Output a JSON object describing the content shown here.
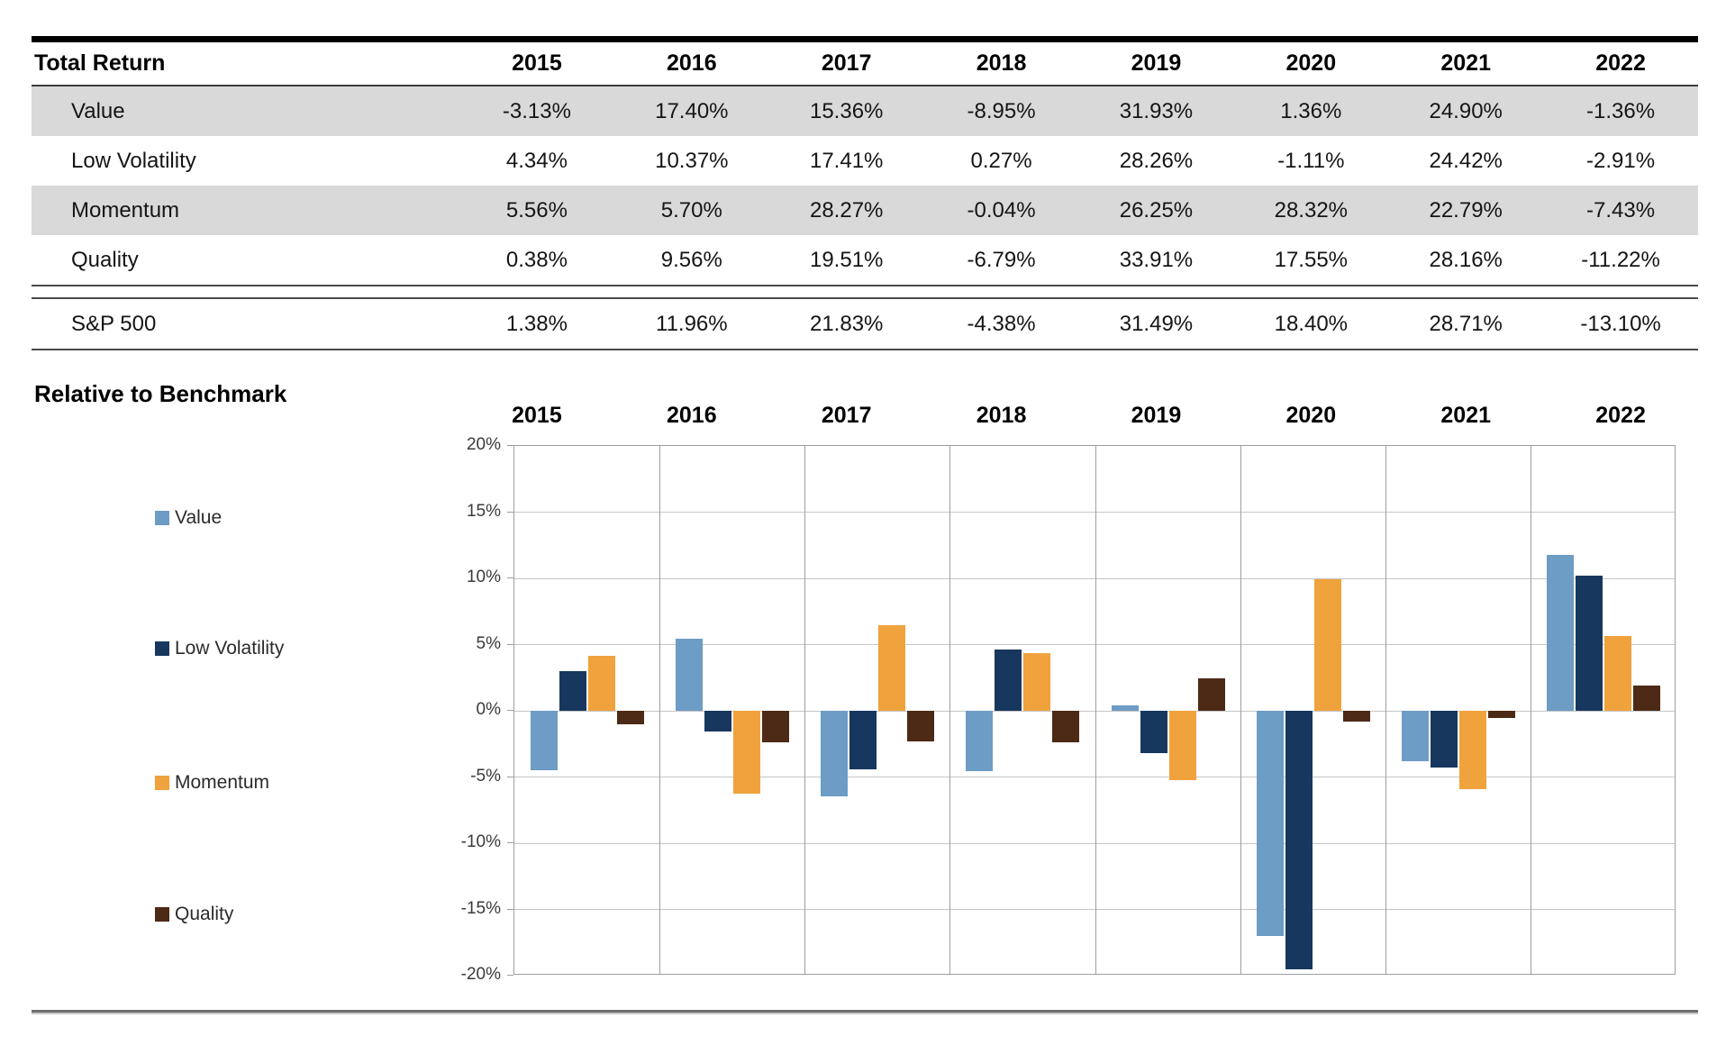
{
  "table": {
    "header": {
      "label": "Total Return",
      "years": [
        "2015",
        "2016",
        "2017",
        "2018",
        "2019",
        "2020",
        "2021",
        "2022"
      ]
    },
    "rows": [
      {
        "label": "Value",
        "shaded": true,
        "values": [
          "-3.13%",
          "17.40%",
          "15.36%",
          "-8.95%",
          "31.93%",
          "1.36%",
          "24.90%",
          "-1.36%"
        ]
      },
      {
        "label": "Low Volatility",
        "shaded": false,
        "values": [
          "4.34%",
          "10.37%",
          "17.41%",
          "0.27%",
          "28.26%",
          "-1.11%",
          "24.42%",
          "-2.91%"
        ]
      },
      {
        "label": "Momentum",
        "shaded": true,
        "values": [
          "5.56%",
          "5.70%",
          "28.27%",
          "-0.04%",
          "26.25%",
          "28.32%",
          "22.79%",
          "-7.43%"
        ]
      },
      {
        "label": "Quality",
        "shaded": false,
        "values": [
          "0.38%",
          "9.56%",
          "19.51%",
          "-6.79%",
          "33.91%",
          "17.55%",
          "28.16%",
          "-11.22%"
        ]
      }
    ],
    "benchmark_row": {
      "label": "S&P 500",
      "values": [
        "1.38%",
        "11.96%",
        "21.83%",
        "-4.38%",
        "31.49%",
        "18.40%",
        "28.71%",
        "-13.10%"
      ]
    }
  },
  "chart": {
    "title": "Relative to Benchmark",
    "y_tick_labels": [
      "20%",
      "15%",
      "10%",
      "5%",
      "0%",
      "-5%",
      "-10%",
      "-15%",
      "-20%"
    ]
  },
  "chart_data": {
    "type": "bar",
    "title": "Relative to Benchmark",
    "categories": [
      "2015",
      "2016",
      "2017",
      "2018",
      "2019",
      "2020",
      "2021",
      "2022"
    ],
    "series": [
      {
        "name": "Value",
        "color": "#6D9CC5",
        "values": [
          -4.51,
          5.44,
          -6.47,
          -4.57,
          0.44,
          -17.04,
          -3.81,
          11.74
        ]
      },
      {
        "name": "Low Volatility",
        "color": "#17375E",
        "values": [
          2.96,
          -1.59,
          -4.42,
          4.65,
          -3.23,
          -19.51,
          -4.29,
          10.19
        ]
      },
      {
        "name": "Momentum",
        "color": "#F0A23C",
        "values": [
          4.18,
          -6.26,
          6.44,
          4.34,
          -5.24,
          9.92,
          -5.92,
          5.67
        ]
      },
      {
        "name": "Quality",
        "color": "#4C2A16",
        "values": [
          -1.0,
          -2.4,
          -2.32,
          -2.41,
          2.42,
          -0.85,
          -0.55,
          1.88
        ]
      }
    ],
    "ylim": [
      -20,
      20
    ],
    "y_tick_step": 5,
    "grid": true,
    "legend_position": "left",
    "xlabel": "",
    "ylabel": ""
  }
}
